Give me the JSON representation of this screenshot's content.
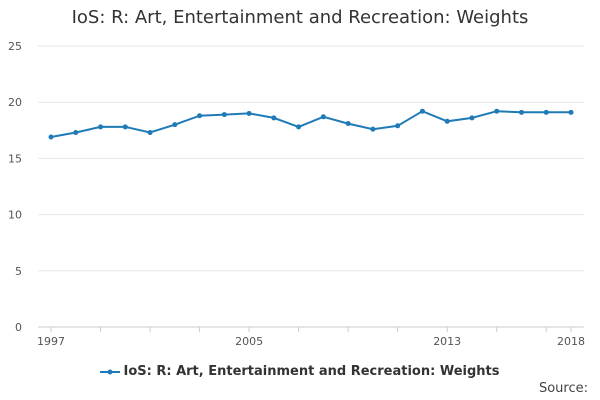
{
  "chart_data": {
    "type": "line",
    "title": "IoS: R: Art, Entertainment and Recreation: Weights",
    "xlabel": "",
    "ylabel": "",
    "x": [
      1997,
      1998,
      1999,
      2000,
      2001,
      2002,
      2003,
      2004,
      2005,
      2006,
      2007,
      2008,
      2009,
      2010,
      2011,
      2012,
      2013,
      2014,
      2015,
      2016,
      2017,
      2018
    ],
    "x_tick_labels": [
      "1997",
      "2005",
      "2013",
      "2018"
    ],
    "x_tick_values": [
      1997,
      2005,
      2013,
      2018
    ],
    "xlim": [
      1997,
      2018
    ],
    "ylim": [
      0,
      25
    ],
    "y_ticks": [
      0,
      5,
      10,
      15,
      20,
      25
    ],
    "grid": true,
    "legend_position": "bottom-center",
    "series": [
      {
        "name": "IoS: R: Art, Entertainment and Recreation: Weights",
        "color": "#1f7bb8",
        "values": [
          16.9,
          17.3,
          17.8,
          17.8,
          17.3,
          18.0,
          18.8,
          18.9,
          19.0,
          18.6,
          17.8,
          18.7,
          18.1,
          17.6,
          17.9,
          19.2,
          18.3,
          18.6,
          19.2,
          19.1,
          19.1,
          19.1
        ]
      }
    ]
  },
  "footer": {
    "source_label": "Source:"
  }
}
